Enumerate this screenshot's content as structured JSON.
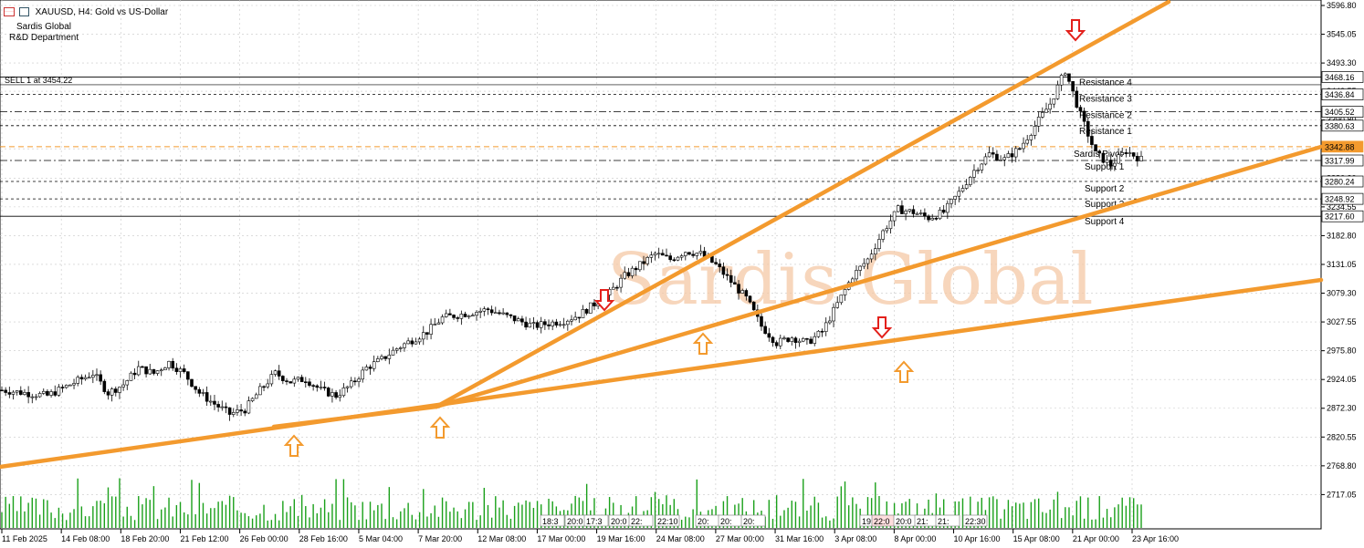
{
  "header": {
    "symbol_line": "XAUUSD, H4:  Gold vs US-Dollar",
    "company": "Sardis Global",
    "department": "R&D Department",
    "order_label": "SELL 1 at 3454.22"
  },
  "watermark": "Sardis Global",
  "colors": {
    "trendline": "#f39a2e",
    "arrow_down": "#e3201b",
    "arrow_up": "#f39a2e",
    "volume": "#1aa01a",
    "grid": "#c8c8c8",
    "pivot": "#f39a2e"
  },
  "chart_data": {
    "type": "candlestick",
    "symbol": "XAUUSD",
    "timeframe": "H4",
    "title": "XAUUSD, H4:  Gold vs US-Dollar",
    "ylim": [
      2665.0,
      3596.8
    ],
    "y_ticks": [
      "3596.80",
      "3545.05",
      "3493.30",
      "3442.55",
      "3390.80",
      "3339.05",
      "3286.30",
      "3234.55",
      "3182.80",
      "3131.05",
      "3079.30",
      "3027.55",
      "2975.80",
      "2924.05",
      "2872.30",
      "2820.55",
      "2768.80",
      "2717.05"
    ],
    "x_ticks": [
      "11 Feb 2025",
      "14 Feb 08:00",
      "18 Feb 20:00",
      "21 Feb 12:00",
      "26 Feb 00:00",
      "28 Feb 16:00",
      "5 Mar 04:00",
      "7 Mar 20:00",
      "12 Mar 08:00",
      "17 Mar 00:00",
      "19 Mar 16:00",
      "24 Mar 08:00",
      "27 Mar 00:00",
      "31 Mar 16:00",
      "3 Apr 08:00",
      "8 Apr 00:00",
      "10 Apr 16:00",
      "15 Apr 08:00",
      "21 Apr 00:00",
      "23 Apr 16:00"
    ],
    "series": [
      {
        "points": [
          [
            0,
            2905
          ],
          [
            6,
            2895
          ],
          [
            12,
            2935
          ],
          [
            14,
            2900
          ],
          [
            16,
            2915
          ],
          [
            18,
            2945
          ],
          [
            20,
            2935
          ],
          [
            22,
            2955
          ],
          [
            24,
            2935
          ],
          [
            26,
            2900
          ],
          [
            28,
            2880
          ],
          [
            30,
            2862
          ],
          [
            32,
            2870
          ],
          [
            34,
            2905
          ],
          [
            36,
            2935
          ],
          [
            38,
            2920
          ],
          [
            40,
            2925
          ],
          [
            42,
            2905
          ],
          [
            44,
            2895
          ],
          [
            46,
            2915
          ],
          [
            48,
            2945
          ],
          [
            50,
            2960
          ],
          [
            52,
            2980
          ],
          [
            54,
            2995
          ],
          [
            56,
            3010
          ],
          [
            58,
            3035
          ],
          [
            60,
            3040
          ],
          [
            62,
            3045
          ],
          [
            64,
            3050
          ],
          [
            66,
            3040
          ],
          [
            68,
            3030
          ],
          [
            70,
            3020
          ],
          [
            72,
            3025
          ],
          [
            74,
            3030
          ],
          [
            76,
            3040
          ],
          [
            78,
            3060
          ],
          [
            80,
            3080
          ],
          [
            82,
            3110
          ],
          [
            84,
            3130
          ],
          [
            86,
            3150
          ],
          [
            88,
            3140
          ],
          [
            90,
            3155
          ],
          [
            92,
            3150
          ],
          [
            94,
            3130
          ],
          [
            96,
            3100
          ],
          [
            98,
            3070
          ],
          [
            100,
            3020
          ],
          [
            102,
            2990
          ],
          [
            104,
            3000
          ],
          [
            106,
            2990
          ],
          [
            108,
            3010
          ],
          [
            110,
            3060
          ],
          [
            112,
            3110
          ],
          [
            114,
            3140
          ],
          [
            116,
            3190
          ],
          [
            118,
            3230
          ],
          [
            120,
            3225
          ],
          [
            122,
            3215
          ],
          [
            124,
            3225
          ],
          [
            126,
            3260
          ],
          [
            128,
            3300
          ],
          [
            130,
            3330
          ],
          [
            132,
            3320
          ],
          [
            134,
            3340
          ],
          [
            136,
            3380
          ],
          [
            138,
            3420
          ],
          [
            140,
            3480
          ],
          [
            142,
            3400
          ],
          [
            144,
            3330
          ],
          [
            146,
            3310
          ],
          [
            148,
            3335
          ],
          [
            150,
            3320
          ]
        ]
      }
    ],
    "levels": [
      {
        "name": "Resistance 4",
        "value": 3468.16,
        "label": "3468.16",
        "style": "solid"
      },
      {
        "name": "Resistance 3",
        "value": 3436.84,
        "label": "3436.84",
        "style": "dash"
      },
      {
        "name": "Resistance 2",
        "value": 3405.52,
        "label": "3405.52",
        "style": "dashdot"
      },
      {
        "name": "Resistance 1",
        "value": 3380.63,
        "label": "3380.63",
        "style": "dash"
      },
      {
        "name": "Sardis Pivot",
        "value": 3342.88,
        "label": "3342.88",
        "style": "pivot"
      },
      {
        "name": "Support 1",
        "value": 3317.99,
        "label": "3317.99",
        "style": "dashdot"
      },
      {
        "name": "Support 2",
        "value": 3280.24,
        "label": "3280.24",
        "style": "dash"
      },
      {
        "name": "Support 3",
        "value": 3248.92,
        "label": "3248.92",
        "style": "dash"
      },
      {
        "name": "Support 4",
        "value": 3217.6,
        "label": "3217.60",
        "style": "solid"
      }
    ],
    "order_line": {
      "value": 3454.22,
      "label": "SELL 1 at 3454.22"
    },
    "volume_time_labels": [
      "18:3",
      "20:0",
      "17:3",
      "20:0",
      "22:",
      "22:10",
      "20:",
      "20:",
      "20:",
      "19:15",
      "22:0",
      "20:0",
      "21:",
      "21:",
      "22:30"
    ],
    "grid": true
  }
}
